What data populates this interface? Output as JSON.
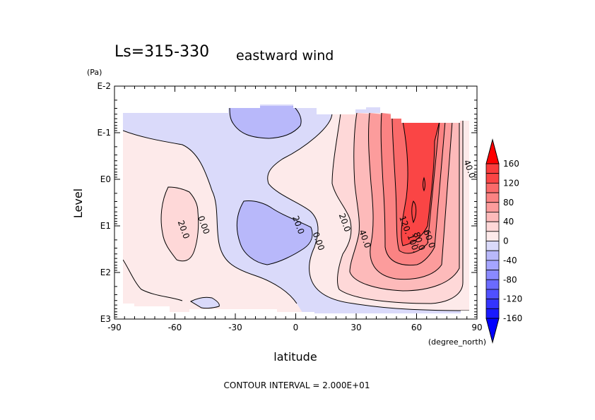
{
  "chart_data": {
    "type": "heatmap",
    "subtype": "filled-contour",
    "title_left": "Ls=315-330",
    "title_right": "eastward wind",
    "xlabel": "latitude",
    "x_units": "(degree_north)",
    "ylabel": "Level",
    "y_units": "(Pa)",
    "xlim": [
      -90,
      90
    ],
    "x_ticks": [
      "-90",
      "-60",
      "-30",
      "0",
      "30",
      "60",
      "90"
    ],
    "x_tick_values": [
      -90,
      -60,
      -30,
      0,
      30,
      60,
      90
    ],
    "y_scale": "log",
    "ylim_exponent": [
      -2,
      3
    ],
    "y_ticks": [
      "E-2",
      "E-1",
      "E0",
      "E1",
      "E2",
      "E3"
    ],
    "y_tick_exponents": [
      -2,
      -1,
      0,
      1,
      2,
      3
    ],
    "footer": "CONTOUR INTERVAL = 2.000E+01",
    "contour_interval": 20,
    "contour_labels": [
      {
        "text": "20.0",
        "lat": -57,
        "logp": 1.1
      },
      {
        "text": "0.00",
        "lat": -47,
        "logp": 1.0
      },
      {
        "text": "20.0",
        "lat": 0,
        "logp": 1.0
      },
      {
        "text": "0.00",
        "lat": 10,
        "logp": 1.35
      },
      {
        "text": "20.0",
        "lat": 23,
        "logp": 0.95
      },
      {
        "text": "40.0",
        "lat": 33,
        "logp": 1.3
      },
      {
        "text": "120.",
        "lat": 53,
        "logp": 1.0
      },
      {
        "text": "100.",
        "lat": 57,
        "logp": 1.4
      },
      {
        "text": "80.0",
        "lat": 60,
        "logp": 1.35
      },
      {
        "text": "60.0",
        "lat": 65,
        "logp": 1.3
      },
      {
        "text": "40.0",
        "lat": 85,
        "logp": -0.2
      }
    ],
    "colorbar": {
      "labels": [
        "160",
        "120",
        "80",
        "40",
        "0",
        "-40",
        "-80",
        "-120",
        "-160"
      ],
      "levels": [
        -160,
        -140,
        -120,
        -100,
        -80,
        -60,
        -40,
        -20,
        0,
        20,
        40,
        60,
        80,
        100,
        120,
        140,
        160
      ],
      "colors": [
        "#0000ff",
        "#1a1aff",
        "#3434ff",
        "#5050ff",
        "#6b6bff",
        "#8a8aff",
        "#a5a5ff",
        "#b8b8fa",
        "#dadafa",
        "#fdeaea",
        "#fed8d8",
        "#fdbaba",
        "#fc9c9c",
        "#fb8383",
        "#fa6a6a",
        "#fa4545",
        "#fa3c3c",
        "#ff0000"
      ]
    },
    "regions": [
      {
        "value_range": [
          -20,
          0
        ],
        "color": "#dadafa",
        "description": "light blue background"
      },
      {
        "value_range": [
          0,
          20
        ],
        "color": "#fdeaea"
      },
      {
        "value_range": [
          20,
          40
        ],
        "color": "#fed8d8"
      },
      {
        "value_range": [
          -40,
          -20
        ],
        "color": "#b8b8fa"
      },
      {
        "value_range": [
          40,
          60
        ],
        "color": "#fdbaba"
      },
      {
        "value_range": [
          60,
          80
        ],
        "color": "#fc9c9c"
      },
      {
        "value_range": [
          80,
          100
        ],
        "color": "#fb8383"
      },
      {
        "value_range": [
          100,
          120
        ],
        "color": "#fa6a6a"
      },
      {
        "value_range": [
          120,
          140
        ],
        "color": "#fa4545"
      }
    ]
  }
}
